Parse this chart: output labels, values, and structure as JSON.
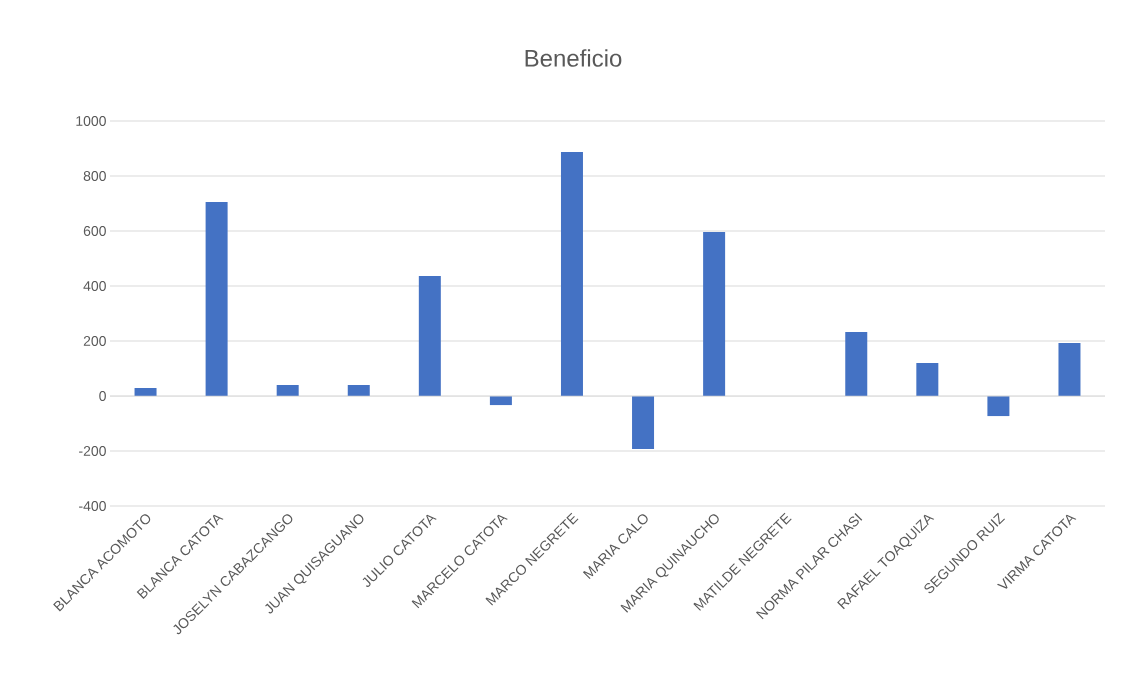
{
  "chart_data": {
    "type": "bar",
    "title": "Beneficio",
    "categories": [
      "BLANCA ACOMOTO",
      "BLANCA CATOTA",
      "JOSELYN CABAZCANGO",
      "JUAN QUISAGUANO",
      "JULIO CATOTA",
      "MARCELO CATOTA",
      "MARCO NEGRETE",
      "MARIA CALO",
      "MARIA QUINAUCHO",
      "MATILDE NEGRETE",
      "NORMA PILAR CHASI",
      "RAFAEL TOAQUIZA",
      "SEGUNDO RUIZ",
      "VIRMA CATOTA"
    ],
    "values": [
      29,
      705,
      40,
      40,
      436,
      -33,
      887,
      -193,
      596,
      0,
      233,
      120,
      -73,
      193
    ],
    "color": "#4472c4",
    "ylim": [
      -400,
      1000
    ],
    "yticks": [
      -400,
      -200,
      0,
      200,
      400,
      600,
      800,
      1000
    ],
    "grid": "y"
  }
}
